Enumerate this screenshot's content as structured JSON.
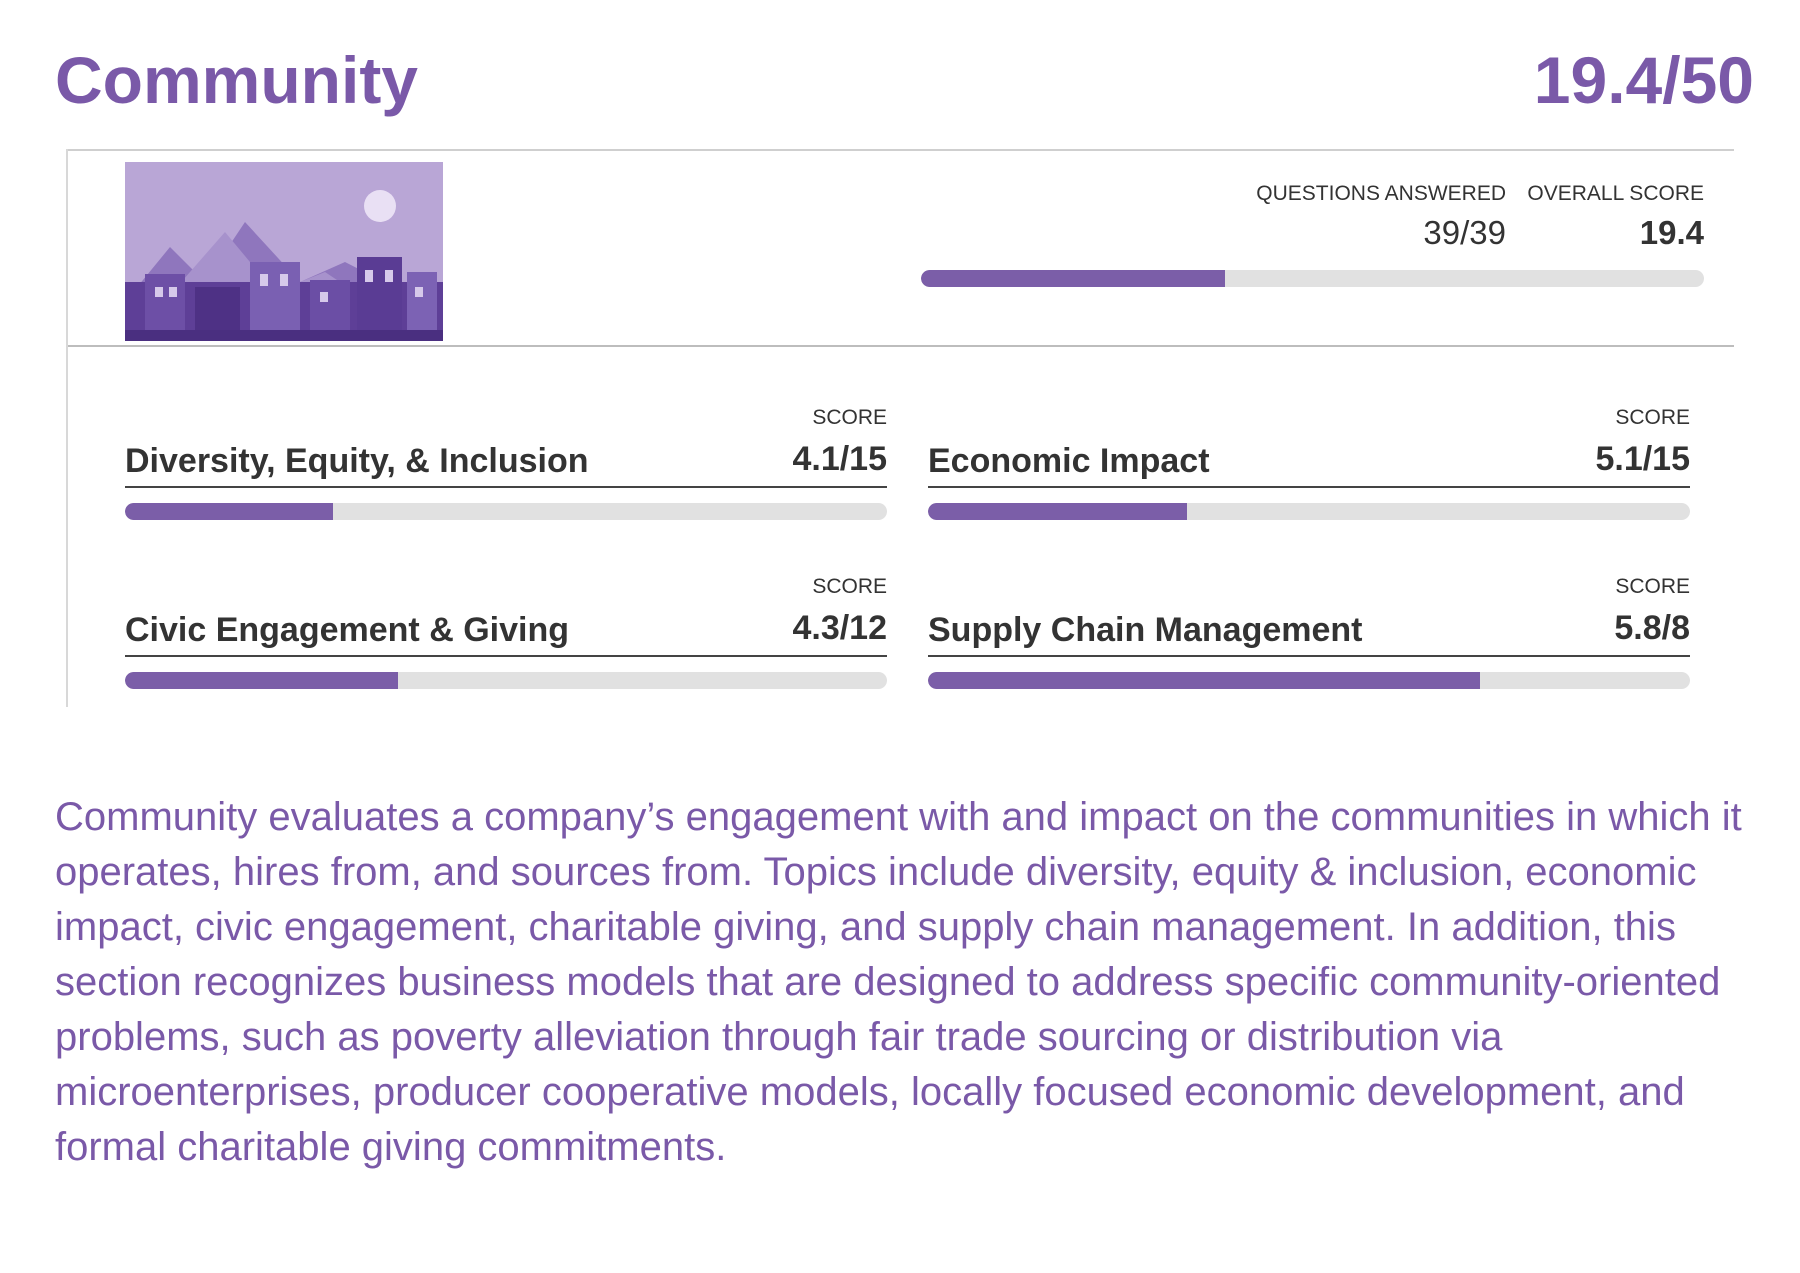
{
  "header": {
    "title": "Community",
    "total": {
      "value": 19.4,
      "max": 50,
      "label": "19.4/50"
    }
  },
  "stats": {
    "questions": {
      "label": "QUESTIONS ANSWERED",
      "value": "39/39"
    },
    "overall": {
      "label": "OVERALL SCORE",
      "value": 19.4
    }
  },
  "categories": [
    {
      "name": "Diversity, Equity, & Inclusion",
      "score_label": "SCORE",
      "score": {
        "value": 4.1,
        "max": 15,
        "label": "4.1/15"
      }
    },
    {
      "name": "Economic Impact",
      "score_label": "SCORE",
      "score": {
        "value": 5.1,
        "max": 15,
        "label": "5.1/15"
      }
    },
    {
      "name": "Civic Engagement & Giving",
      "score_label": "SCORE",
      "score": {
        "value": 4.3,
        "max": 12,
        "label": "4.3/12"
      }
    },
    {
      "name": "Supply Chain Management",
      "score_label": "SCORE",
      "score": {
        "value": 5.8,
        "max": 8,
        "label": "5.8/8"
      }
    }
  ],
  "description": "Community evaluates a company’s engagement with and impact on the communities in which it operates, hires from, and sources from. Topics include diversity, equity & inclusion, economic impact, civic engagement, charitable giving, and supply chain management. In addition, this section recognizes business models that are designed to address specific community-oriented problems, such as poverty alleviation through fair trade sourcing or distribution via microenterprises, producer cooperative models, locally focused economic development, and formal charitable giving commitments."
}
